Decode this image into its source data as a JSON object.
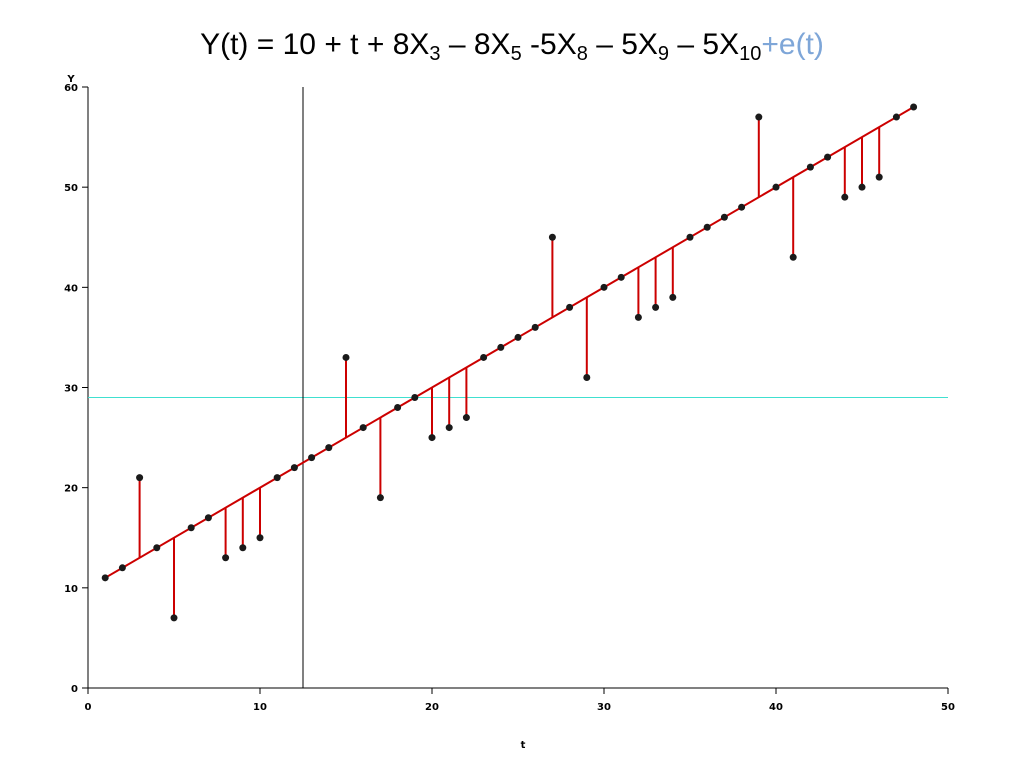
{
  "title": {
    "parts": [
      {
        "text": "Y(t)   = 10 + t + 8X",
        "style": "normal"
      },
      {
        "text": "3",
        "style": "sub"
      },
      {
        "text": " – 8X",
        "style": "normal"
      },
      {
        "text": "5",
        "style": "sub"
      },
      {
        "text": "  -5X",
        "style": "normal"
      },
      {
        "text": "8",
        "style": "sub"
      },
      {
        "text": " – 5X",
        "style": "normal"
      },
      {
        "text": "9",
        "style": "sub"
      },
      {
        "text": " – 5X",
        "style": "normal"
      },
      {
        "text": "10",
        "style": "sub"
      },
      {
        "text": "+e(t)",
        "style": "e"
      }
    ]
  },
  "chart_data": {
    "type": "scatter",
    "xlabel": "t",
    "ylabel": "Y",
    "xlim": [
      0,
      50
    ],
    "ylim": [
      0,
      60
    ],
    "xticks": [
      0,
      10,
      20,
      30,
      40,
      50
    ],
    "yticks": [
      0,
      10,
      20,
      30,
      40,
      50,
      60
    ],
    "x": [
      1,
      2,
      3,
      4,
      5,
      6,
      7,
      8,
      9,
      10,
      11,
      12,
      13,
      14,
      15,
      16,
      17,
      18,
      19,
      20,
      21,
      22,
      23,
      24,
      25,
      26,
      27,
      28,
      29,
      30,
      31,
      32,
      33,
      34,
      35,
      36,
      37,
      38,
      39,
      40,
      41,
      42,
      43,
      44,
      45,
      46,
      47,
      48
    ],
    "observed": [
      11,
      12,
      21,
      14,
      7,
      16,
      17,
      13,
      14,
      15,
      21,
      22,
      23,
      24,
      33,
      26,
      19,
      28,
      29,
      25,
      26,
      27,
      33,
      34,
      35,
      36,
      45,
      38,
      31,
      40,
      41,
      37,
      38,
      39,
      45,
      46,
      47,
      48,
      57,
      50,
      43,
      52,
      53,
      49,
      50,
      51,
      57,
      58
    ],
    "fitted_line": {
      "intercept": 10,
      "slope": 1
    },
    "mean_line_y": 29,
    "vertical_line_x": 12.5,
    "colors": {
      "points": "#1a1a1a",
      "fit_and_residuals": "#cc0000",
      "mean_line": "#40e0d0",
      "vertical_line": "#000000",
      "axes": "#000000",
      "title_error_term": "#7ea6d8"
    }
  }
}
